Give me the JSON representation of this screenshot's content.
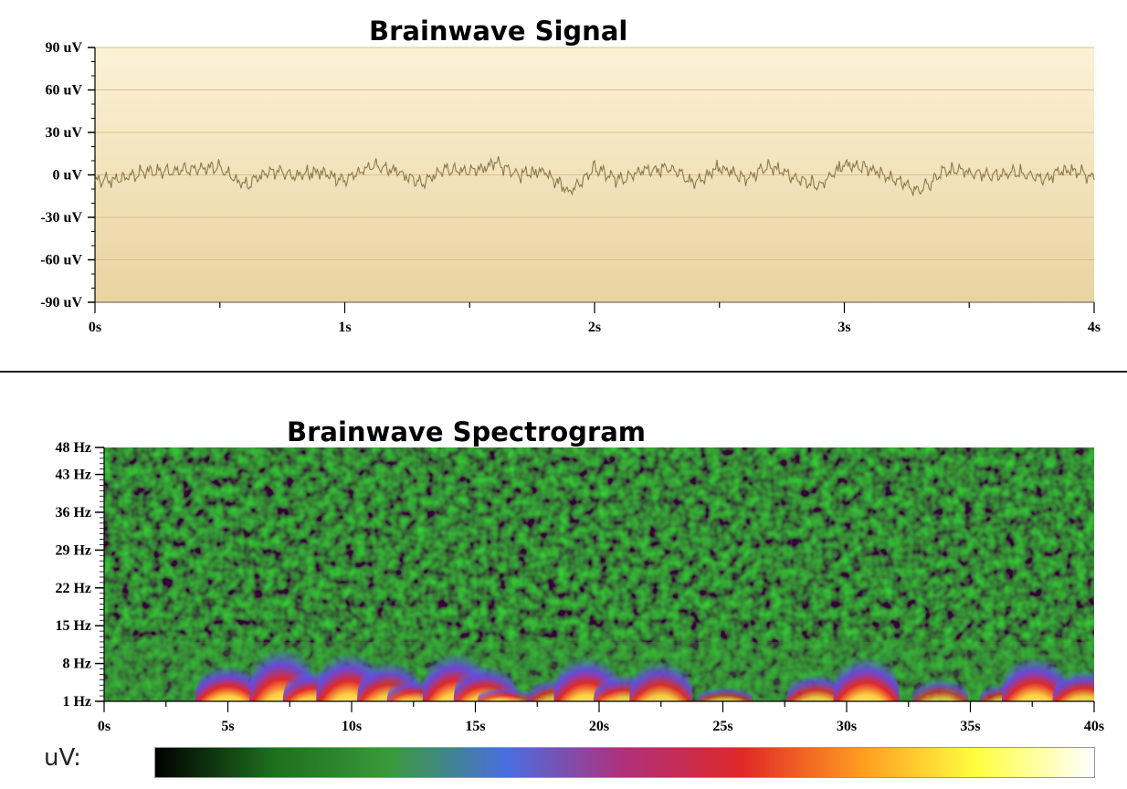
{
  "chart_data": [
    {
      "type": "line",
      "title": "Brainwave Signal",
      "xlim": [
        0,
        4
      ],
      "ylim": [
        -90,
        90
      ],
      "x_ticks": [
        "0s",
        "1s",
        "2s",
        "3s",
        "4s"
      ],
      "y_ticks": [
        "90 uV",
        "60 uV",
        "30 uV",
        "0 uV",
        "-30 uV",
        "-60 uV",
        "-90 uV"
      ],
      "grid": true,
      "series": [
        {
          "x": [
            0,
            0.1,
            0.2,
            0.3,
            0.4,
            0.5,
            0.6,
            0.7,
            0.8,
            0.9,
            1.0,
            1.1,
            1.2,
            1.3,
            1.4,
            1.5,
            1.6,
            1.7,
            1.8,
            1.9,
            2.0,
            2.1,
            2.2,
            2.3,
            2.4,
            2.5,
            2.6,
            2.7,
            2.8,
            2.9,
            3.0,
            3.1,
            3.2,
            3.3,
            3.4,
            3.5,
            3.6,
            3.7,
            3.8,
            3.9,
            4.0
          ],
          "y": [
            -5,
            -3,
            2,
            3,
            4,
            5,
            -8,
            3,
            0,
            2,
            -4,
            6,
            3,
            -6,
            4,
            2,
            8,
            0,
            3,
            -12,
            5,
            -4,
            3,
            5,
            -6,
            6,
            -3,
            6,
            -2,
            -8,
            7,
            4,
            -3,
            -12,
            3,
            2,
            0,
            2,
            -3,
            5,
            -2
          ]
        }
      ]
    },
    {
      "type": "heatmap",
      "title": "Brainwave Spectrogram",
      "xlim": [
        0,
        40
      ],
      "ylim": [
        1,
        48
      ],
      "x_ticks": [
        "0s",
        "5s",
        "10s",
        "15s",
        "20s",
        "25s",
        "30s",
        "35s",
        "40s"
      ],
      "y_ticks": [
        "48 Hz",
        "43 Hz",
        "36 Hz",
        "29 Hz",
        "22 Hz",
        "15 Hz",
        "8 Hz",
        "1 Hz"
      ],
      "y_tick_values": [
        48,
        43,
        36,
        29,
        22,
        15,
        8,
        1
      ],
      "hotspots": [
        {
          "t": 5.0,
          "freq_top": 8,
          "level": 1.0
        },
        {
          "t": 7.2,
          "freq_top": 12,
          "level": 1.0
        },
        {
          "t": 8.5,
          "freq_top": 7,
          "level": 0.9
        },
        {
          "t": 9.9,
          "freq_top": 11,
          "level": 1.0
        },
        {
          "t": 11.5,
          "freq_top": 9,
          "level": 0.9
        },
        {
          "t": 12.6,
          "freq_top": 5,
          "level": 0.7
        },
        {
          "t": 14.2,
          "freq_top": 11,
          "level": 1.0
        },
        {
          "t": 15.4,
          "freq_top": 8,
          "level": 0.9
        },
        {
          "t": 16.2,
          "freq_top": 3,
          "level": 0.6
        },
        {
          "t": 18.3,
          "freq_top": 5,
          "level": 0.7
        },
        {
          "t": 19.5,
          "freq_top": 10,
          "level": 1.0
        },
        {
          "t": 21.0,
          "freq_top": 6,
          "level": 0.8
        },
        {
          "t": 22.5,
          "freq_top": 9,
          "level": 0.9
        },
        {
          "t": 25.1,
          "freq_top": 3,
          "level": 0.6
        },
        {
          "t": 28.8,
          "freq_top": 6,
          "level": 0.8
        },
        {
          "t": 30.8,
          "freq_top": 10,
          "level": 1.0
        },
        {
          "t": 33.8,
          "freq_top": 5,
          "level": 0.6
        },
        {
          "t": 36.5,
          "freq_top": 4,
          "level": 0.6
        },
        {
          "t": 37.6,
          "freq_top": 10,
          "level": 1.0
        },
        {
          "t": 39.6,
          "freq_top": 7,
          "level": 0.9
        }
      ]
    }
  ],
  "colorbar": {
    "label": "uV:",
    "colors": [
      "#000000",
      "#1e6e1e",
      "#3a9a3a",
      "#4a6ee0",
      "#b0307a",
      "#e02828",
      "#ff9a20",
      "#ffff40",
      "#ffffff"
    ]
  }
}
